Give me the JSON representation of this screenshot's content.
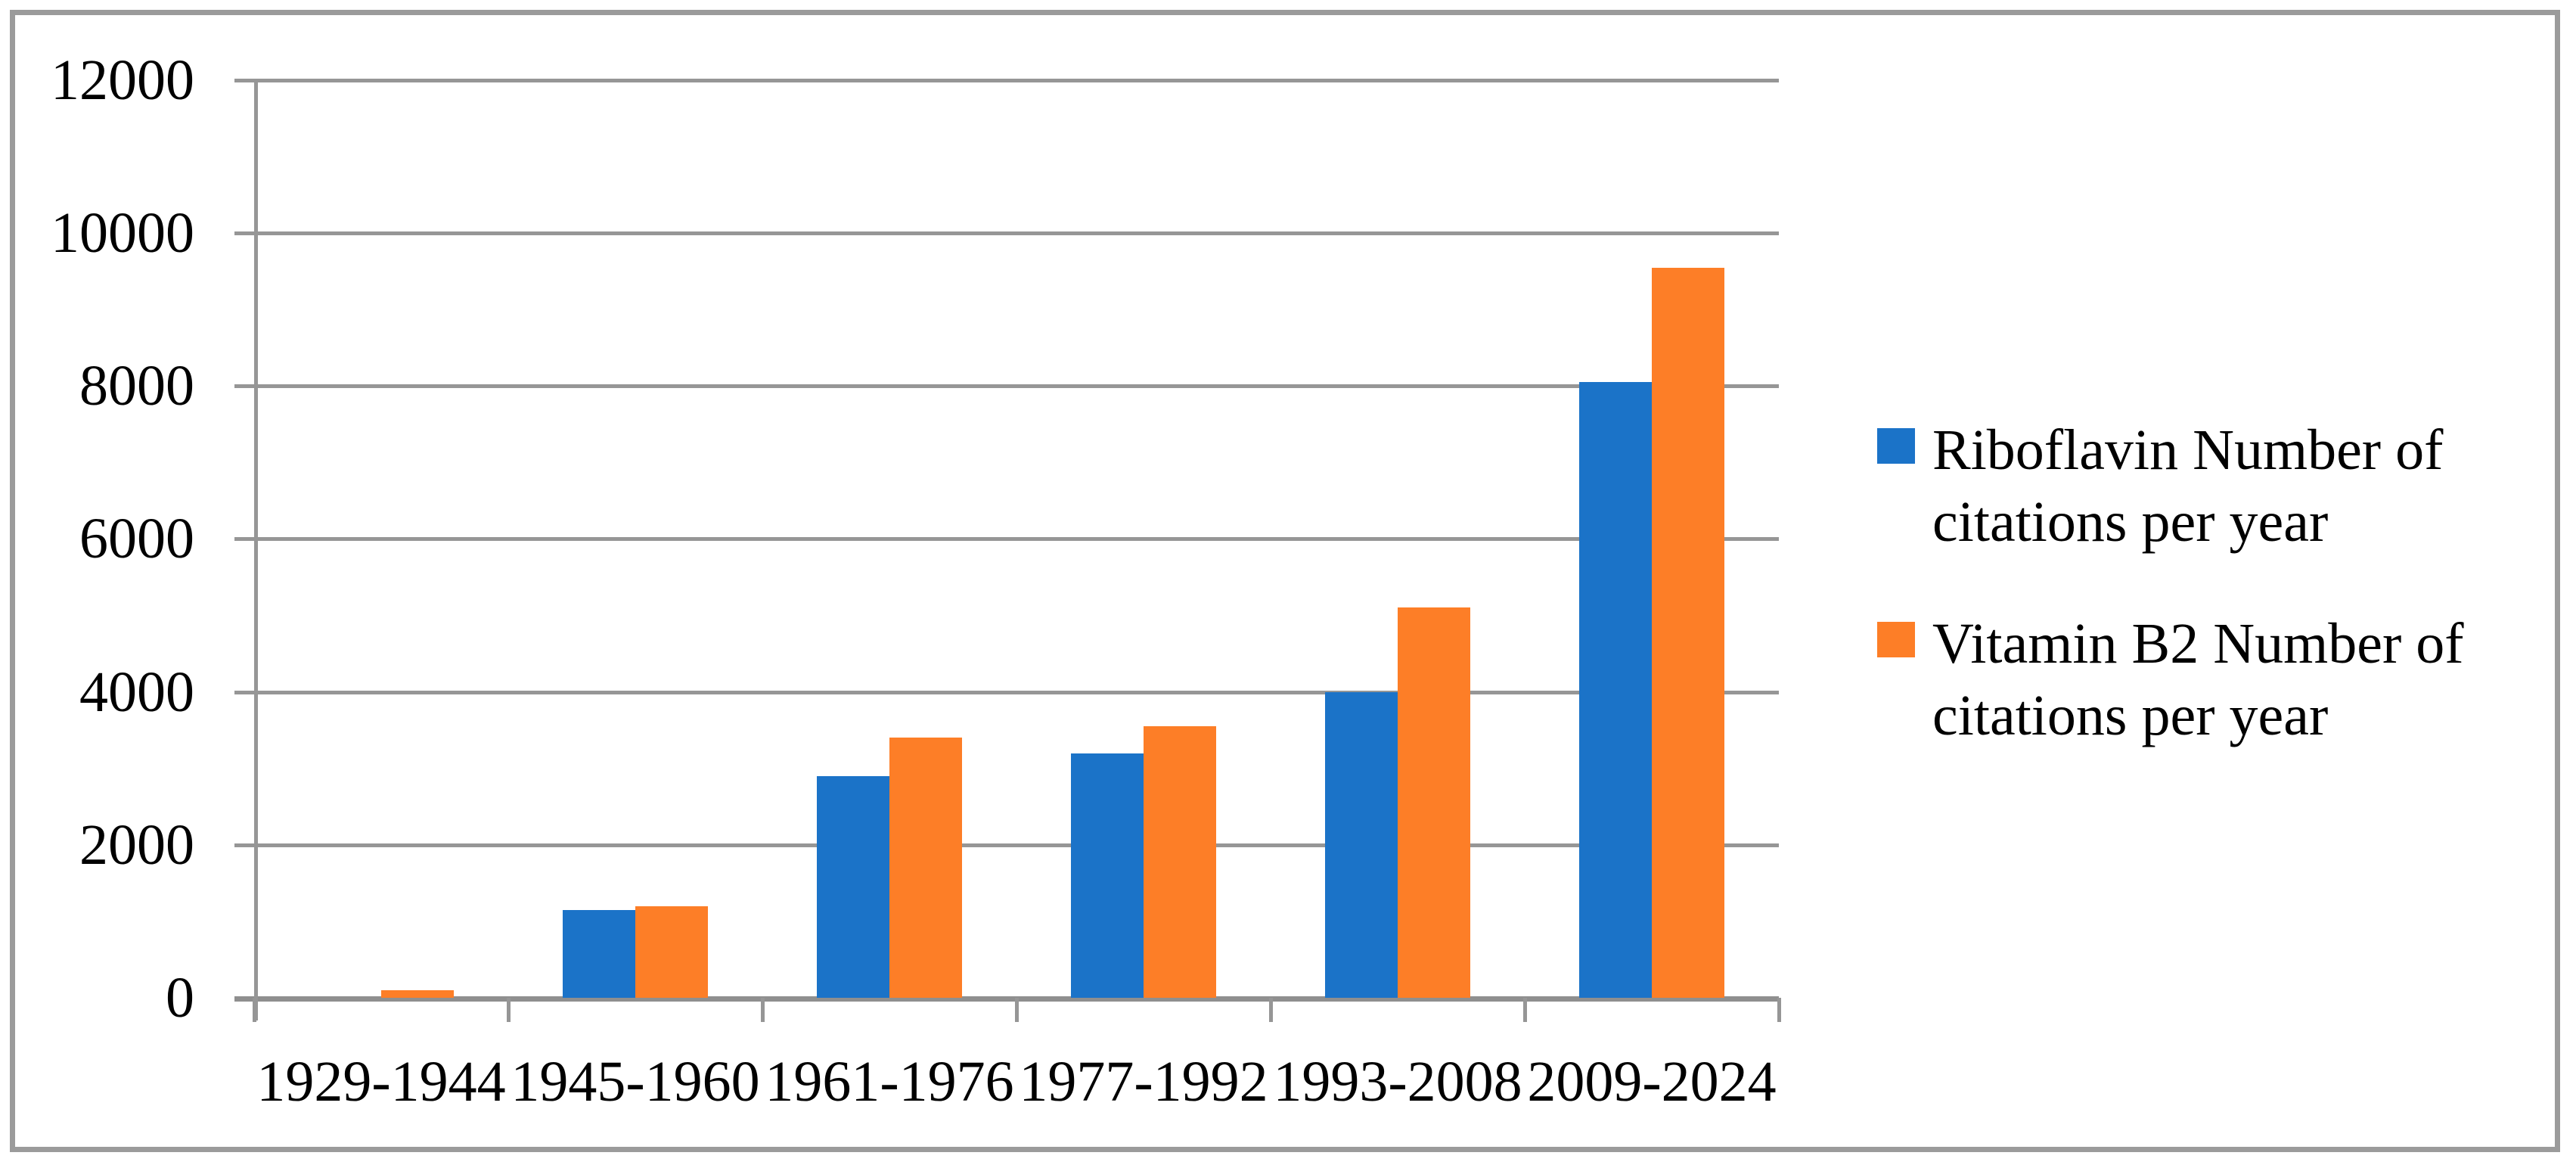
{
  "chart_data": {
    "type": "bar",
    "categories": [
      "1929-1944",
      "1945-1960",
      "1961-1976",
      "1977-1992",
      "1993-2008",
      "2009-2024"
    ],
    "series": [
      {
        "name": "Riboflavin Number of citations per year",
        "color": "#1b73c8",
        "values": [
          0,
          1150,
          2900,
          3200,
          4000,
          8050
        ]
      },
      {
        "name": "Vitamin B2 Number of citations per year",
        "color": "#fd7e27",
        "values": [
          100,
          1200,
          3400,
          3550,
          5100,
          9550
        ]
      }
    ],
    "title": "",
    "xlabel": "",
    "ylabel": "",
    "ylim": [
      0,
      12000
    ],
    "yticks": [
      0,
      2000,
      4000,
      6000,
      8000,
      10000,
      12000
    ],
    "grid": true,
    "legend_position": "right",
    "gridline_color": "#969696",
    "border_color": "#9b9b9b",
    "background_color": "#ffffff",
    "text_color": "#000000"
  }
}
